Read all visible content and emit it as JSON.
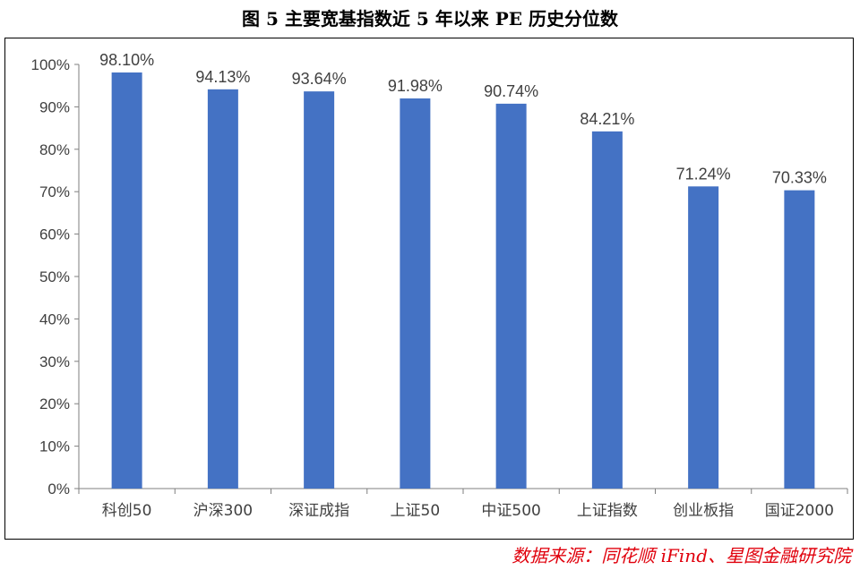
{
  "title": "图 5 主要宽基指数近 5 年以来 PE 历史分位数",
  "source": "数据来源：同花顺 iFind、星图金融研究院",
  "chart_data": {
    "type": "bar",
    "categories": [
      "科创50",
      "沪深300",
      "深证成指",
      "上证50",
      "中证500",
      "上证指数",
      "创业板指",
      "国证2000"
    ],
    "values": [
      98.1,
      94.13,
      93.64,
      91.98,
      90.74,
      84.21,
      71.24,
      70.33
    ],
    "data_labels": [
      "98.10%",
      "94.13%",
      "93.64%",
      "91.98%",
      "90.74%",
      "84.21%",
      "71.24%",
      "70.33%"
    ],
    "y_ticks": [
      "0%",
      "10%",
      "20%",
      "30%",
      "40%",
      "50%",
      "60%",
      "70%",
      "80%",
      "90%",
      "100%"
    ],
    "ylim": [
      0,
      100
    ],
    "grid": false,
    "legend": "none",
    "bar_color": "#4472c4"
  }
}
